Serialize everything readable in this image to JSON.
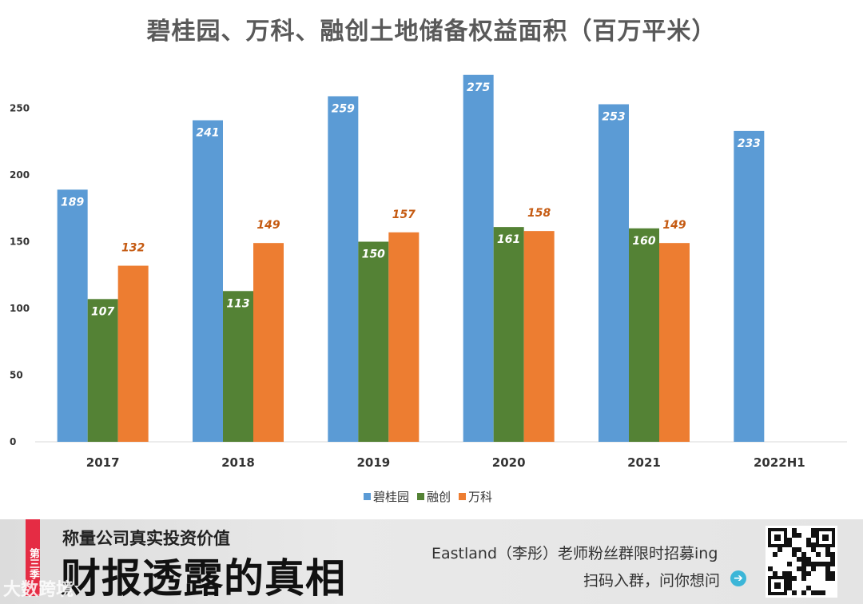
{
  "banner": {
    "season_badge": "第三季",
    "subtitle": "称量公司真实投资价值",
    "slogan": "财报透露的真相",
    "watermark": "大数跨境",
    "recruit": "Eastland（李彤）老师粉丝群限时招募ing",
    "qr_caption": "扫码入群，问你想问",
    "arrow_icon": "➔"
  },
  "colors": {
    "碧桂园": "#5b9bd5",
    "融创": "#548235",
    "万科": "#ed7d31"
  },
  "chart_data": {
    "type": "bar",
    "title": "碧桂园、万科、融创土地储备权益面积（百万平米）",
    "categories": [
      "2017",
      "2018",
      "2019",
      "2020",
      "2021",
      "2022H1"
    ],
    "series": [
      {
        "name": "碧桂园",
        "values": [
          189,
          241,
          259,
          275,
          253,
          233
        ],
        "labels": [
          "189",
          "241",
          "259",
          "275",
          "253",
          "233"
        ]
      },
      {
        "name": "融创",
        "values": [
          107,
          113,
          150,
          161,
          160,
          null
        ],
        "labels": [
          "107",
          "113",
          "150",
          "161",
          "160",
          ""
        ]
      },
      {
        "name": "万科",
        "values": [
          132,
          149,
          157,
          158,
          149,
          null
        ],
        "labels": [
          "132",
          "149",
          "157",
          "158",
          "149",
          ""
        ]
      }
    ],
    "ylim": [
      0,
      280
    ],
    "yticks": [
      0,
      50,
      100,
      150,
      200,
      250
    ],
    "ytick_labels": [
      "0",
      "50",
      "100",
      "150",
      "200",
      "250"
    ],
    "legend_position": "bottom",
    "grid": false,
    "xlabel": "",
    "ylabel": ""
  }
}
